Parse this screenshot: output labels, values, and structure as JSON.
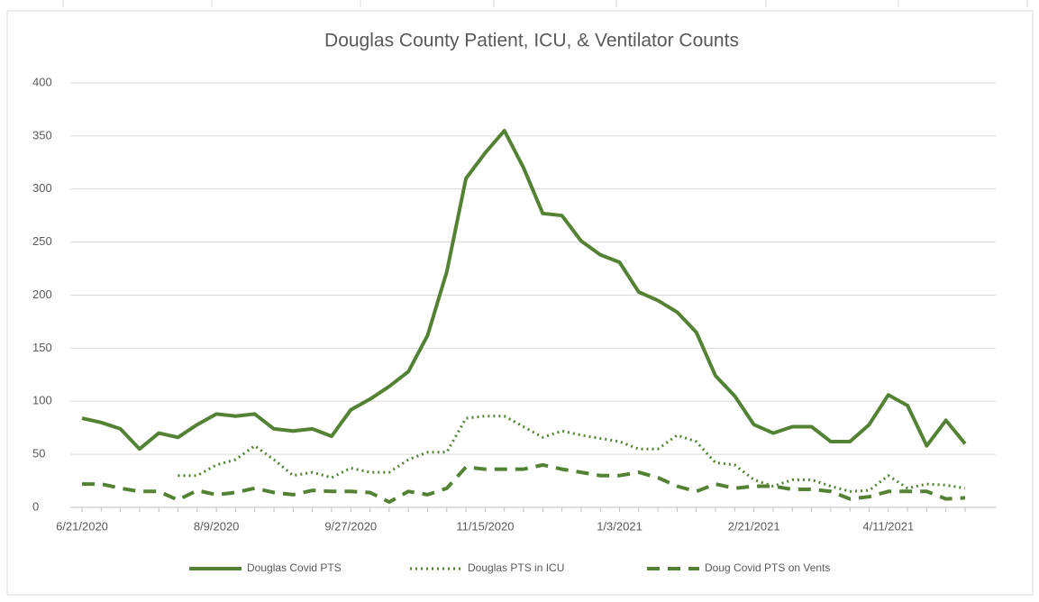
{
  "chart_data": {
    "type": "line",
    "title": "Douglas County Patient, ICU, & Ventilator Counts",
    "categories": [
      "6/21/2020",
      null,
      null,
      null,
      null,
      null,
      null,
      "8/9/2020",
      null,
      null,
      null,
      null,
      null,
      null,
      "9/27/2020",
      null,
      null,
      null,
      null,
      null,
      null,
      "11/15/2020",
      null,
      null,
      null,
      null,
      null,
      null,
      "1/3/2021",
      null,
      null,
      null,
      null,
      null,
      null,
      "2/21/2021",
      null,
      null,
      null,
      null,
      null,
      null,
      "4/11/2021",
      null,
      null,
      null,
      null
    ],
    "series": [
      {
        "name": "Douglas Covid PTS",
        "color": "#548235",
        "dash": "solid",
        "values": [
          84,
          80,
          74,
          55,
          70,
          66,
          78,
          88,
          86,
          88,
          74,
          72,
          74,
          67,
          92,
          102,
          114,
          128,
          162,
          222,
          310,
          334,
          355,
          320,
          277,
          275,
          251,
          238,
          231,
          203,
          195,
          184,
          165,
          124,
          105,
          78,
          70,
          76,
          76,
          62,
          62,
          78,
          106,
          96,
          58,
          82,
          60
        ]
      },
      {
        "name": "Douglas PTS in ICU",
        "color": "#548235",
        "dash": "dotted",
        "values": [
          null,
          null,
          null,
          null,
          null,
          30,
          30,
          40,
          45,
          58,
          45,
          30,
          33,
          28,
          37,
          33,
          33,
          45,
          52,
          52,
          84,
          86,
          86,
          76,
          66,
          72,
          68,
          65,
          62,
          55,
          55,
          68,
          62,
          42,
          40,
          26,
          20,
          26,
          26,
          20,
          15,
          16,
          30,
          18,
          22,
          21,
          18
        ]
      },
      {
        "name": "Doug Covid PTS on Vents",
        "color": "#548235",
        "dash": "dashed",
        "values": [
          22,
          22,
          18,
          15,
          15,
          7,
          16,
          12,
          14,
          18,
          14,
          12,
          16,
          15,
          15,
          14,
          5,
          15,
          12,
          18,
          38,
          36,
          36,
          36,
          40,
          36,
          33,
          30,
          30,
          33,
          28,
          20,
          15,
          22,
          18,
          20,
          20,
          17,
          17,
          15,
          8,
          10,
          15,
          15,
          15,
          8,
          9
        ]
      }
    ],
    "ylim": [
      0,
      400
    ],
    "yticks": [
      0,
      50,
      100,
      150,
      200,
      250,
      300,
      350,
      400
    ],
    "grid": true,
    "legend": "bottom"
  }
}
